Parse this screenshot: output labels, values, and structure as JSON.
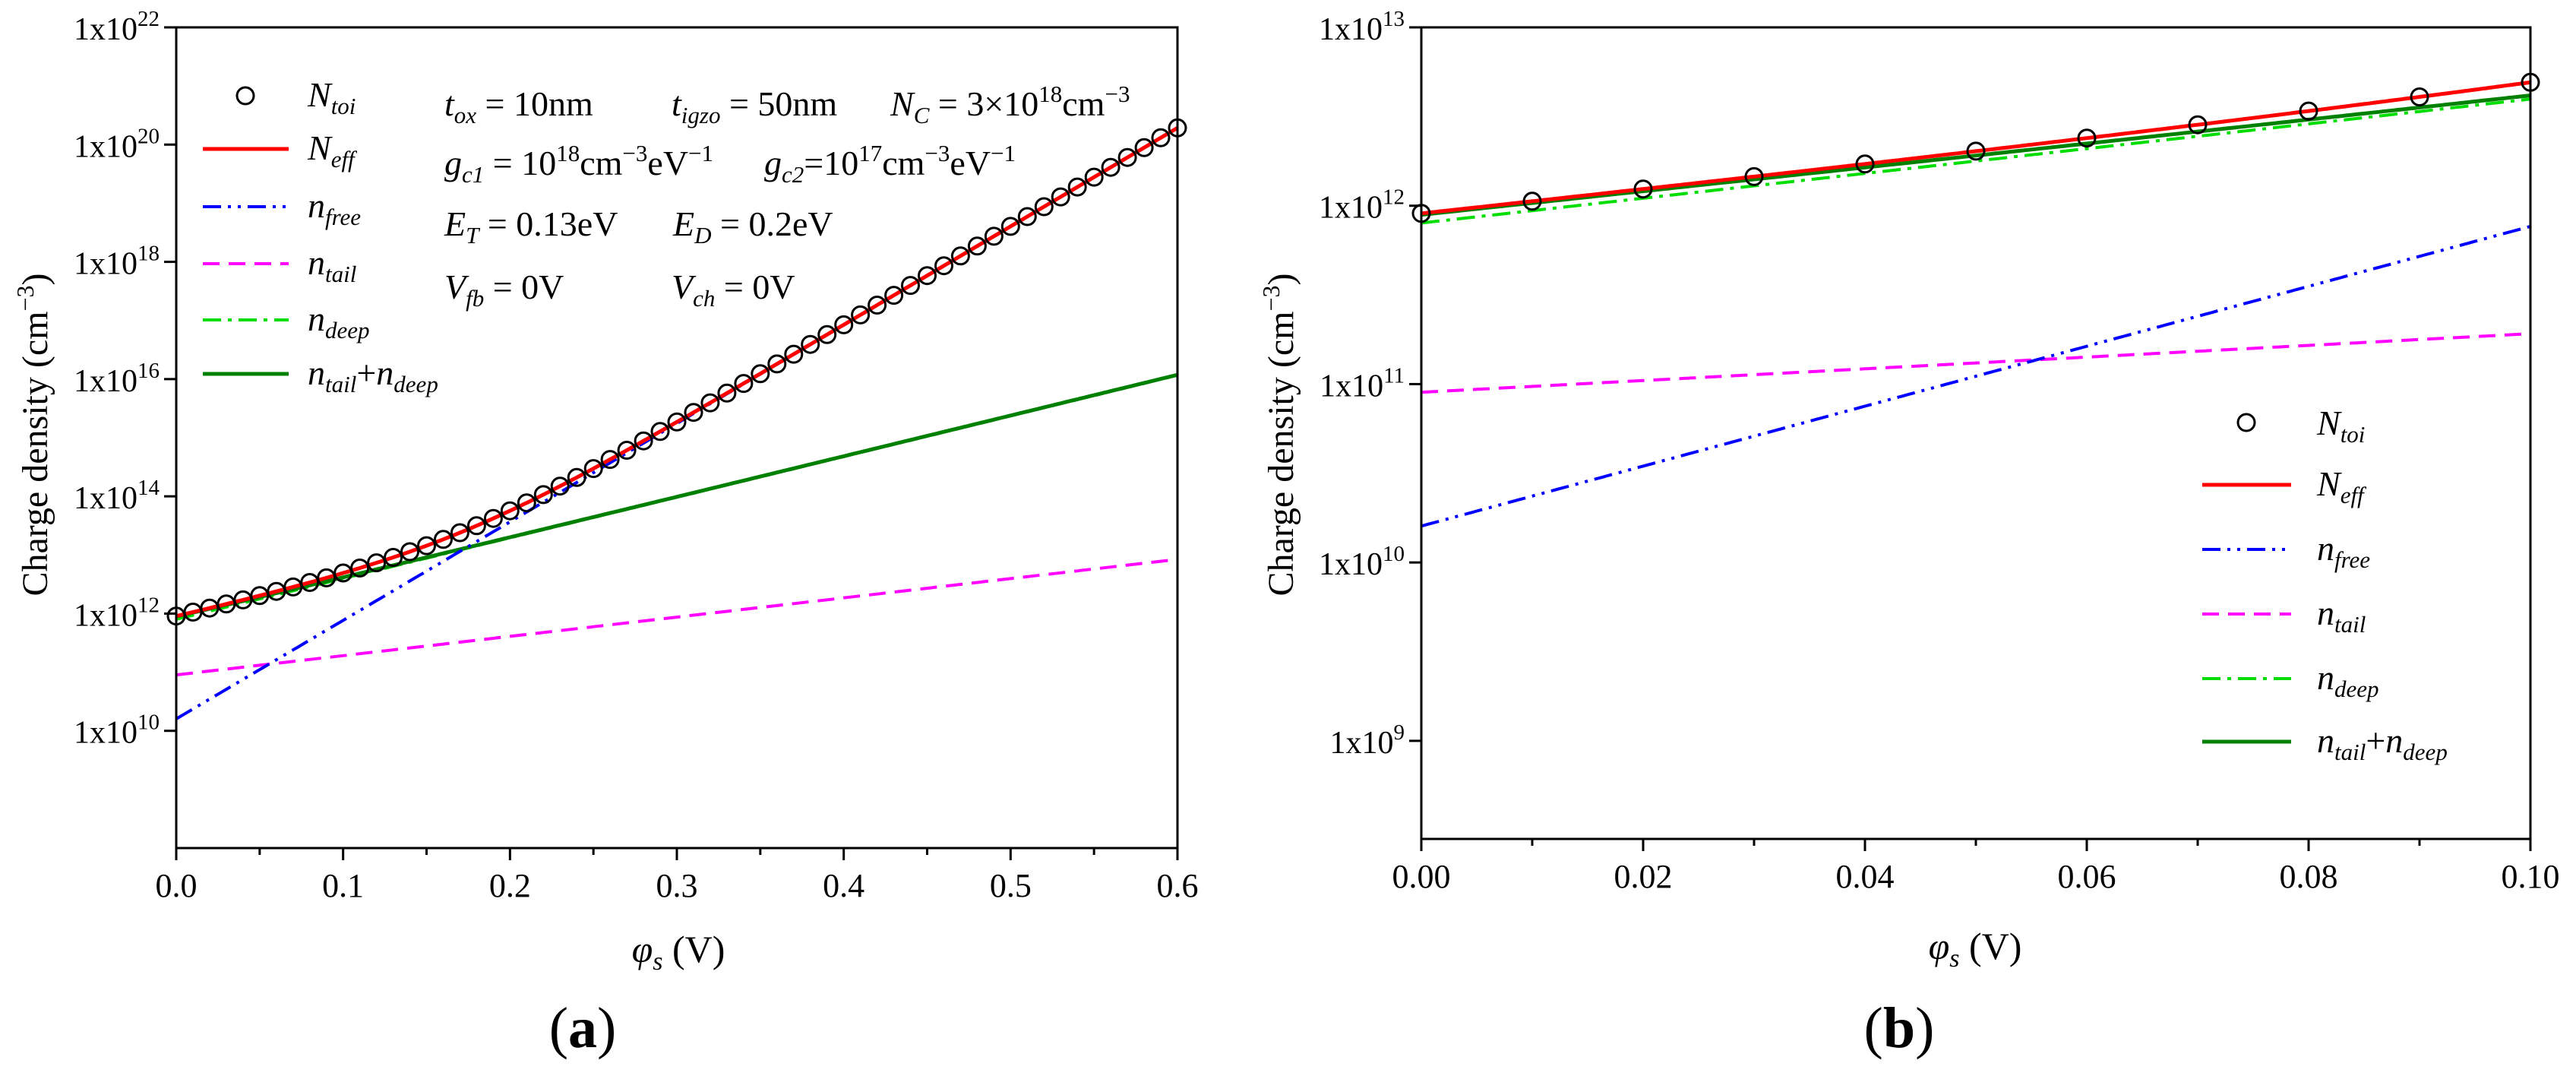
{
  "colors": {
    "n_toi": "#000000",
    "n_eff": "#ff0000",
    "n_free": "#0000ff",
    "n_tail": "#ff00ff",
    "n_deep": "#00dd00",
    "n_tail_deep": "#008000"
  },
  "legend_a": {
    "n_toi": {
      "base": "N",
      "sub": "toi"
    },
    "n_eff": {
      "base": "N",
      "sub": "eff"
    },
    "n_free": {
      "base": "n",
      "sub": "free"
    },
    "n_tail": {
      "base": "n",
      "sub": "tail"
    },
    "n_deep": {
      "base": "n",
      "sub": "deep"
    },
    "n_tail_deep": {
      "base": "n",
      "sub": "tail",
      "plus": "+",
      "base2": "n",
      "sub2": "deep"
    }
  },
  "legend_b": {
    "n_toi": {
      "base": "N",
      "sub": "toi"
    },
    "n_eff": {
      "base": "N",
      "sub": "eff"
    },
    "n_free": {
      "base": "n",
      "sub": "free"
    },
    "n_tail": {
      "base": "n",
      "sub": "tail"
    },
    "n_deep": {
      "base": "n",
      "sub": "deep"
    },
    "n_tail_deep": {
      "base": "n",
      "sub": "tail",
      "plus": "+",
      "base2": "n",
      "sub2": "deep"
    }
  },
  "params": {
    "tox": {
      "sym": "t",
      "sub": "ox",
      "val": " = 10nm"
    },
    "tigzo": {
      "sym": "t",
      "sub": "igzo",
      "val": " = 50nm"
    },
    "nc": {
      "sym": "N",
      "sub": "C",
      "val": " = 3×10",
      "sup": "18",
      "unit": "cm",
      "unit_sup": "−3"
    },
    "gc1": {
      "sym": "g",
      "sub": "c1",
      "val": " = 10",
      "sup": "18",
      "unit": "cm",
      "unit_sup": "−3",
      "unit2": "eV",
      "unit2_sup": "−1"
    },
    "gc2": {
      "sym": "g",
      "sub": "c2",
      "val": "=10",
      "sup": "17",
      "unit": "cm",
      "unit_sup": "−3",
      "unit2": "eV",
      "unit2_sup": "−1"
    },
    "et": {
      "sym": "E",
      "sub": "T",
      "val": " = 0.13eV"
    },
    "ed": {
      "sym": "E",
      "sub": "D",
      "val": " = 0.2eV"
    },
    "vfb": {
      "sym": "V",
      "sub": "fb",
      "val": " = 0V"
    },
    "vch": {
      "sym": "V",
      "sub": "ch",
      "val": " = 0V"
    }
  },
  "panel_labels": {
    "a": "a",
    "b": "b"
  },
  "chart_data": [
    {
      "type": "line",
      "panel": "a",
      "xlabel": {
        "sym": "φ",
        "sub": "s",
        "unit": " (V)"
      },
      "ylabel": {
        "text": "Charge density (cm",
        "sup": "−3",
        "close": ")"
      },
      "xlim": [
        0.0,
        0.6
      ],
      "ylim_log10": [
        8.0,
        22.0
      ],
      "xticks": [
        0.0,
        0.1,
        0.2,
        0.3,
        0.4,
        0.5,
        0.6
      ],
      "xtick_labels": [
        "0.0",
        "0.1",
        "0.2",
        "0.3",
        "0.4",
        "0.5",
        "0.6"
      ],
      "yticks_log10": [
        10,
        12,
        14,
        16,
        18,
        20,
        22
      ],
      "ytick_labels": [
        {
          "base": "1x10",
          "exp": "10"
        },
        {
          "base": "1x10",
          "exp": "12"
        },
        {
          "base": "1x10",
          "exp": "14"
        },
        {
          "base": "1x10",
          "exp": "16"
        },
        {
          "base": "1x10",
          "exp": "18"
        },
        {
          "base": "1x10",
          "exp": "20"
        },
        {
          "base": "1x10",
          "exp": "22"
        }
      ],
      "model": {
        "kT": 0.02585,
        "free0": 16000000000.0,
        "tail0": 90000000000.0,
        "tail_slope": 0.1322,
        "deep0": 800000000000.0,
        "deep_slope": 0.0625
      },
      "series": [
        {
          "name": "N_toi",
          "style": "circles",
          "x_start": 0.0,
          "x_end": 0.6,
          "x_step": 0.01
        },
        {
          "name": "N_eff",
          "style": "solid"
        },
        {
          "name": "n_free",
          "style": "dashdotdot"
        },
        {
          "name": "n_tail",
          "style": "dash"
        },
        {
          "name": "n_deep",
          "style": "dashdot"
        },
        {
          "name": "n_tail+n_deep",
          "style": "solid"
        }
      ]
    },
    {
      "type": "line",
      "panel": "b",
      "xlabel": {
        "sym": "φ",
        "sub": "s",
        "unit": " (V)"
      },
      "ylabel": {
        "text": "Charge density (cm",
        "sup": "−3",
        "close": ")"
      },
      "xlim": [
        0.0,
        0.1
      ],
      "ylim_log10": [
        8.45,
        13.0
      ],
      "xticks": [
        0.0,
        0.02,
        0.04,
        0.06,
        0.08,
        0.1
      ],
      "xtick_labels": [
        "0.00",
        "0.02",
        "0.04",
        "0.06",
        "0.08",
        "0.10"
      ],
      "yticks_log10": [
        9,
        10,
        11,
        12,
        13
      ],
      "ytick_labels": [
        {
          "base": "1x10",
          "exp": "9"
        },
        {
          "base": "1x10",
          "exp": "10"
        },
        {
          "base": "1x10",
          "exp": "11"
        },
        {
          "base": "1x10",
          "exp": "12"
        },
        {
          "base": "1x10",
          "exp": "13"
        }
      ],
      "model": {
        "kT": 0.02585,
        "free0": 16000000000.0,
        "tail0": 90000000000.0,
        "tail_slope": 0.1322,
        "deep0": 800000000000.0,
        "deep_slope": 0.0625
      },
      "series": [
        {
          "name": "N_toi",
          "style": "circles",
          "x_start": 0.0,
          "x_end": 0.1,
          "x_step": 0.01
        },
        {
          "name": "N_eff",
          "style": "solid"
        },
        {
          "name": "n_free",
          "style": "dashdotdot"
        },
        {
          "name": "n_tail",
          "style": "dash"
        },
        {
          "name": "n_deep",
          "style": "dashdot"
        },
        {
          "name": "n_tail+n_deep",
          "style": "solid"
        }
      ]
    }
  ]
}
